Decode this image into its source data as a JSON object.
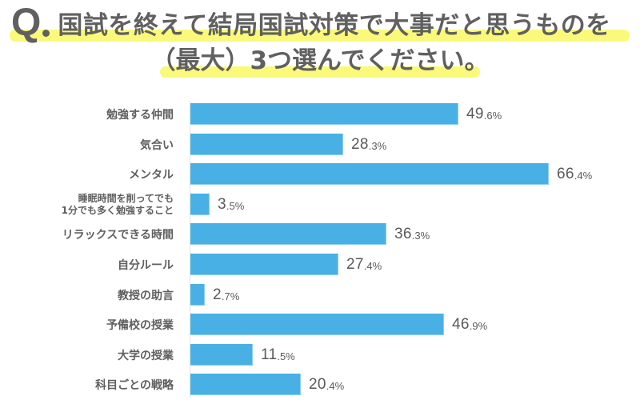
{
  "title": {
    "q_mark": "Q",
    "line1": "国試を終えて結局国試対策で大事だと思うものを",
    "line2": "（最大）3つ選んでください。",
    "highlight_color": "#fbf97a",
    "text_color": "#606060"
  },
  "colors": {
    "bar": "#48b0e4",
    "axis": "#e4e4e4",
    "label": "#5f5f5f"
  },
  "chart_data": {
    "type": "bar",
    "orientation": "horizontal",
    "title": "Q.国試を終えて結局国試対策で大事だと思うものを（最大）3つ選んでください。",
    "xlabel": "",
    "ylabel": "",
    "unit": "%",
    "grid": false,
    "legend": null,
    "xlim": [
      0,
      70
    ],
    "categories": [
      "勉強する仲間",
      "気合い",
      "メンタル",
      "睡眠時間を削ってでも\n1分でも多く勉強すること",
      "リラックスできる時間",
      "自分ルール",
      "教授の助言",
      "予備校の授業",
      "大学の授業",
      "科目ごとの戦略"
    ],
    "values": [
      49.6,
      28.3,
      66.4,
      3.5,
      36.3,
      27.4,
      2.7,
      46.9,
      11.5,
      20.4
    ],
    "labels": [
      {
        "int": "49",
        "dec": ".6%"
      },
      {
        "int": "28",
        "dec": ".3%"
      },
      {
        "int": "66",
        "dec": ".4%"
      },
      {
        "int": "3",
        "dec": ".5%"
      },
      {
        "int": "36",
        "dec": ".3%"
      },
      {
        "int": "27",
        "dec": ".4%"
      },
      {
        "int": "2",
        "dec": ".7%"
      },
      {
        "int": "46",
        "dec": ".9%"
      },
      {
        "int": "11",
        "dec": ".5%"
      },
      {
        "int": "20",
        "dec": ".4%"
      }
    ]
  }
}
